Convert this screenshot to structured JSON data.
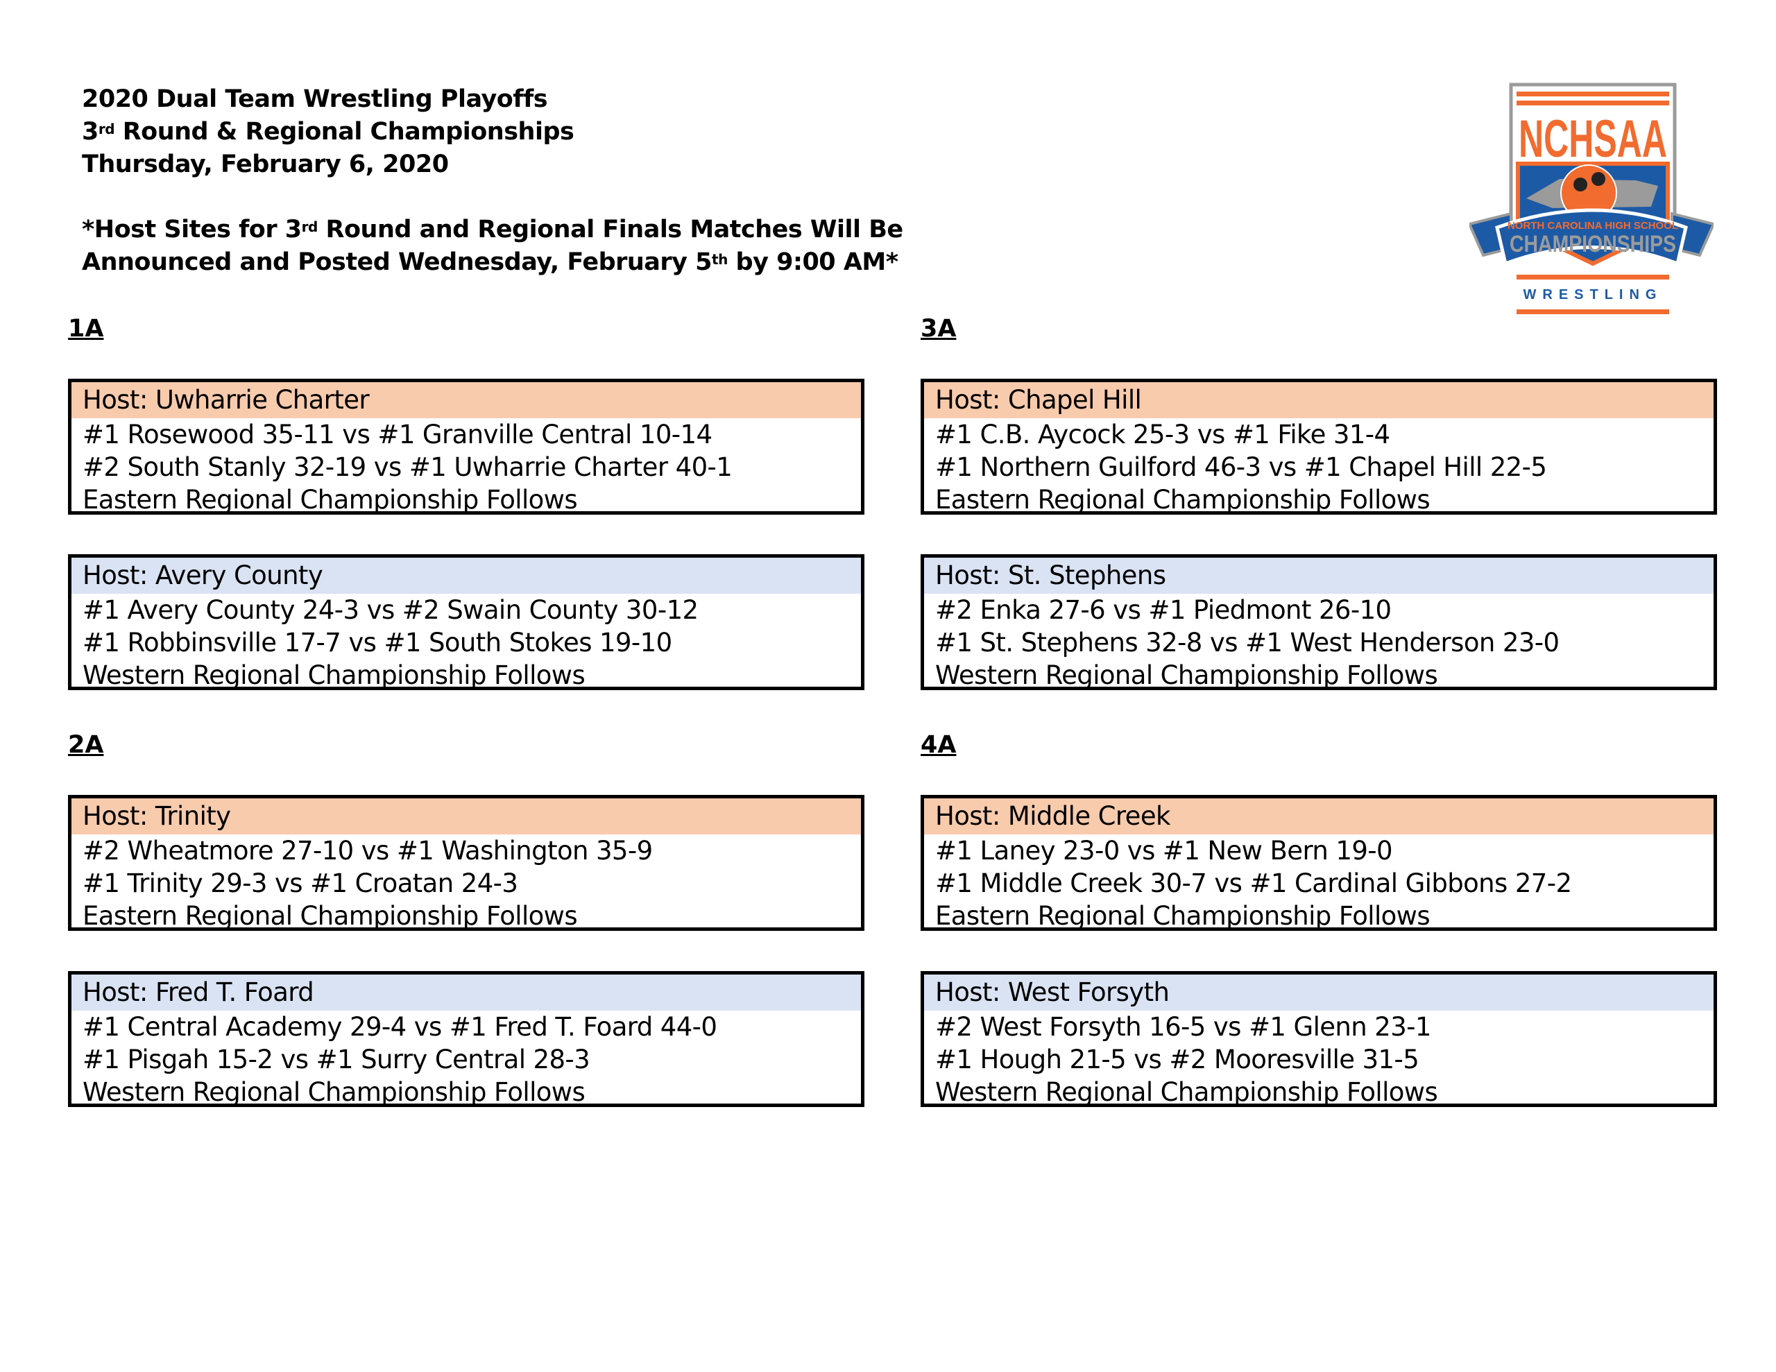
{
  "header": {
    "line1": "2020 Dual Team Wrestling Playoffs",
    "line2_num": "3",
    "line2_sup": "rd",
    "line2_rest": " Round & Regional Championships",
    "line3": "Thursday, February 6, 2020",
    "notice1_a": "*Host Sites for 3",
    "notice1_sup": "rd",
    "notice1_b": " Round and Regional Finals Matches Will Be",
    "notice2_a": "Announced and Posted Wednesday, February 5",
    "notice2_sup": "th",
    "notice2_b": " by 9:00 AM*"
  },
  "logo": {
    "text_main": "NCHSAA",
    "text_banner_top": "NORTH CAROLINA HIGH SCHOOL",
    "text_banner": "CHAMPIONSHIPS",
    "text_sport": "WRESTLING",
    "colors": {
      "orange": "#f26b2f",
      "blue": "#1d5aa6",
      "gray": "#9b9b9b"
    }
  },
  "colors": {
    "eastern_header": "#f8cbad",
    "western_header": "#dae3f3"
  },
  "sections": [
    {
      "label": "1A",
      "boxes": [
        {
          "host": "Host:  Uwharrie Charter",
          "region": "eastern",
          "matches": [
            "#1 Rosewood 35-11 vs #1 Granville Central 10-14",
            "#2 South Stanly 32-19 vs #1 Uwharrie Charter 40-1"
          ],
          "follow": "Eastern Regional Championship Follows"
        },
        {
          "host": "Host: Avery County",
          "region": "western",
          "matches": [
            "#1 Avery County 24-3 vs #2 Swain County 30-12",
            "#1 Robbinsville 17-7 vs #1 South Stokes 19-10"
          ],
          "follow": "Western Regional Championship Follows"
        }
      ]
    },
    {
      "label": "3A",
      "boxes": [
        {
          "host": "Host:  Chapel Hill",
          "region": "eastern",
          "matches": [
            "#1 C.B. Aycock 25-3 vs #1 Fike 31-4",
            "#1 Northern Guilford 46-3 vs #1 Chapel Hill 22-5"
          ],
          "follow": "Eastern Regional Championship Follows"
        },
        {
          "host": "Host: St. Stephens",
          "region": "western",
          "matches": [
            "#2 Enka 27-6 vs #1 Piedmont 26-10",
            "#1 St. Stephens 32-8 vs #1 West Henderson 23-0"
          ],
          "follow": "Western Regional Championship Follows"
        }
      ]
    },
    {
      "label": "2A",
      "boxes": [
        {
          "host": "Host: Trinity",
          "region": "eastern",
          "matches": [
            "#2 Wheatmore 27-10 vs #1 Washington 35-9",
            "#1 Trinity 29-3 vs #1 Croatan 24-3"
          ],
          "follow": "Eastern Regional Championship Follows"
        },
        {
          "host": "Host:  Fred T. Foard",
          "region": "western",
          "matches": [
            "#1 Central Academy 29-4 vs #1 Fred T. Foard 44-0",
            "#1 Pisgah 15-2 vs #1 Surry Central 28-3"
          ],
          "follow": "Western Regional Championship Follows"
        }
      ]
    },
    {
      "label": "4A",
      "boxes": [
        {
          "host": "Host:  Middle Creek",
          "region": "eastern",
          "matches": [
            "#1 Laney 23-0 vs #1 New Bern 19-0",
            "#1 Middle Creek 30-7 vs #1 Cardinal Gibbons 27-2"
          ],
          "follow": "Eastern Regional Championship Follows"
        },
        {
          "host": "Host:  West Forsyth",
          "region": "western",
          "matches": [
            "#2 West Forsyth 16-5 vs #1 Glenn 23-1",
            "#1 Hough 21-5 vs #2 Mooresville 31-5"
          ],
          "follow": "Western Regional Championship Follows"
        }
      ]
    }
  ]
}
